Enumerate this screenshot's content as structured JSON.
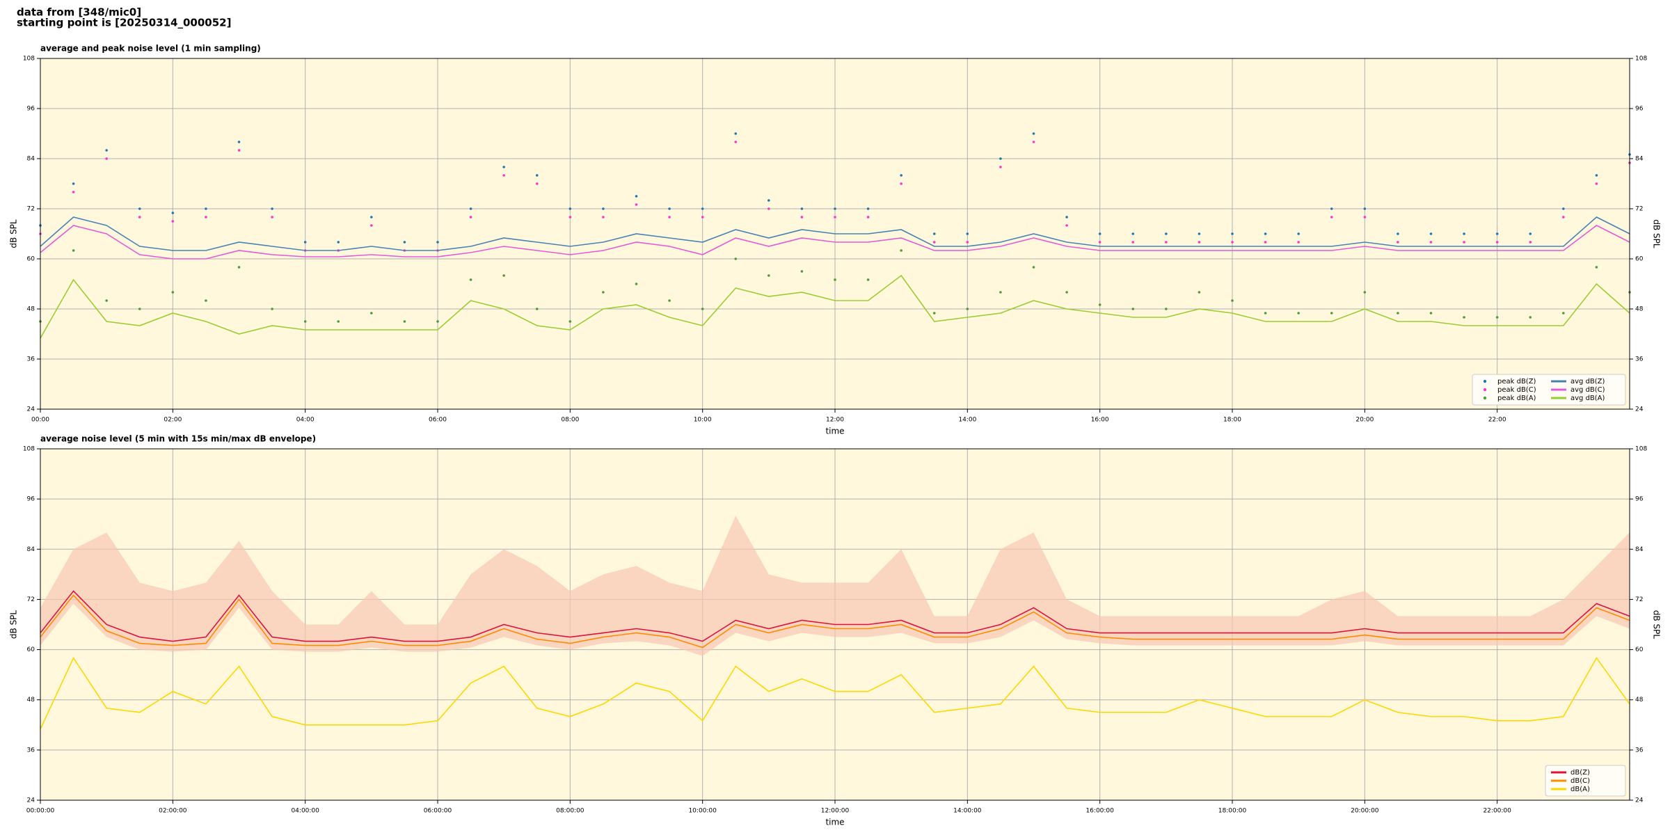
{
  "header": {
    "lines": [
      "data from [348/mic0]",
      "starting point is [20250314_000052]"
    ]
  },
  "chart_data": [
    {
      "type": "line",
      "title": "average and peak noise level (1 min sampling)",
      "x_label": "time",
      "y_label": "dB SPL",
      "mirror_y": true,
      "grid": true,
      "background": "#fff8dc",
      "legend": "lower right",
      "legend_columns": 2,
      "xlim": [
        0,
        24
      ],
      "ylim": [
        24,
        108
      ],
      "yticks": [
        24,
        36,
        48,
        60,
        72,
        84,
        96,
        108
      ],
      "xticks": [
        {
          "value": 0,
          "label": "00:00"
        },
        {
          "value": 2,
          "label": "02:00"
        },
        {
          "value": 4,
          "label": "04:00"
        },
        {
          "value": 6,
          "label": "06:00"
        },
        {
          "value": 8,
          "label": "08:00"
        },
        {
          "value": 10,
          "label": "10:00"
        },
        {
          "value": 12,
          "label": "12:00"
        },
        {
          "value": 14,
          "label": "14:00"
        },
        {
          "value": 16,
          "label": "16:00"
        },
        {
          "value": 18,
          "label": "18:00"
        },
        {
          "value": 20,
          "label": "20:00"
        },
        {
          "value": 22,
          "label": "22:00"
        }
      ],
      "x": [
        0,
        0.5,
        1,
        1.5,
        2,
        2.5,
        3,
        3.5,
        4,
        4.5,
        5,
        5.5,
        6,
        6.5,
        7,
        7.5,
        8,
        8.5,
        9,
        9.5,
        10,
        10.5,
        11,
        11.5,
        12,
        12.5,
        13,
        13.5,
        14,
        14.5,
        15,
        15.5,
        16,
        16.5,
        17,
        17.5,
        18,
        18.5,
        19,
        19.5,
        20,
        20.5,
        21,
        21.5,
        22,
        22.5,
        23,
        23.5,
        24
      ],
      "series": [
        {
          "name": "peak dB(Z)",
          "kind": "scatter",
          "color": "#1f77b4",
          "values": [
            68,
            78,
            86,
            72,
            71,
            72,
            88,
            72,
            64,
            64,
            70,
            64,
            64,
            72,
            82,
            80,
            72,
            72,
            75,
            72,
            72,
            90,
            74,
            72,
            72,
            72,
            80,
            66,
            66,
            84,
            90,
            70,
            66,
            66,
            66,
            66,
            66,
            66,
            66,
            72,
            72,
            66,
            66,
            66,
            66,
            66,
            72,
            80,
            85
          ]
        },
        {
          "name": "peak dB(C)",
          "kind": "scatter",
          "color": "#ff33cc",
          "values": [
            66,
            76,
            84,
            70,
            69,
            70,
            86,
            70,
            62,
            62,
            68,
            62,
            62,
            70,
            80,
            78,
            70,
            70,
            73,
            70,
            70,
            88,
            72,
            70,
            70,
            70,
            78,
            64,
            64,
            82,
            88,
            68,
            64,
            64,
            64,
            64,
            64,
            64,
            64,
            70,
            70,
            64,
            64,
            64,
            64,
            64,
            70,
            78,
            83
          ]
        },
        {
          "name": "peak dB(A)",
          "kind": "scatter",
          "color": "#4f9a3a",
          "values": [
            45,
            62,
            50,
            48,
            52,
            50,
            58,
            48,
            45,
            45,
            47,
            45,
            45,
            55,
            56,
            48,
            45,
            52,
            54,
            50,
            48,
            60,
            56,
            57,
            55,
            55,
            62,
            47,
            48,
            52,
            58,
            52,
            49,
            48,
            48,
            52,
            50,
            47,
            47,
            47,
            52,
            47,
            47,
            46,
            46,
            46,
            47,
            58,
            52
          ]
        },
        {
          "name": "avg dB(Z)",
          "kind": "line",
          "color": "#4682b4",
          "values": [
            63,
            70,
            68,
            63,
            62,
            62,
            64,
            63,
            62,
            62,
            63,
            62,
            62,
            63,
            65,
            64,
            63,
            64,
            66,
            65,
            64,
            67,
            65,
            67,
            66,
            66,
            67,
            63,
            63,
            64,
            66,
            64,
            63,
            63,
            63,
            63,
            63,
            63,
            63,
            63,
            64,
            63,
            63,
            63,
            63,
            63,
            63,
            70,
            66
          ]
        },
        {
          "name": "avg dB(C)",
          "kind": "line",
          "color": "#e55ad6",
          "values": [
            61.5,
            68,
            66,
            61,
            60,
            60,
            62,
            61,
            60.5,
            60.5,
            61,
            60.5,
            60.5,
            61.5,
            63,
            62,
            61,
            62,
            64,
            63,
            61,
            65,
            63,
            65,
            64,
            64,
            65,
            62,
            62,
            63,
            65,
            63,
            62,
            62,
            62,
            62,
            62,
            62,
            62,
            62,
            63,
            62,
            62,
            62,
            62,
            62,
            62,
            68,
            64
          ]
        },
        {
          "name": "avg dB(A)",
          "kind": "line",
          "color": "#9acd32",
          "values": [
            41,
            55,
            45,
            44,
            47,
            45,
            42,
            44,
            43,
            43,
            43,
            43,
            43,
            50,
            48,
            44,
            43,
            48,
            49,
            46,
            44,
            53,
            51,
            52,
            50,
            50,
            56,
            45,
            46,
            47,
            50,
            48,
            47,
            46,
            46,
            48,
            47,
            45,
            45,
            45,
            48,
            45,
            45,
            44,
            44,
            44,
            44,
            54,
            47
          ]
        }
      ]
    },
    {
      "type": "line",
      "title": "average noise level (5 min with 15s min/max dB envelope)",
      "x_label": "time",
      "y_label": "dB SPL",
      "mirror_y": true,
      "grid": true,
      "background": "#fff8dc",
      "legend": "lower right",
      "legend_columns": 1,
      "xlim": [
        0,
        24
      ],
      "ylim": [
        24,
        108
      ],
      "yticks": [
        24,
        36,
        48,
        60,
        72,
        84,
        96,
        108
      ],
      "xticks": [
        {
          "value": 0,
          "label": "00:00:00"
        },
        {
          "value": 2,
          "label": "02:00:00"
        },
        {
          "value": 4,
          "label": "04:00:00"
        },
        {
          "value": 6,
          "label": "06:00:00"
        },
        {
          "value": 8,
          "label": "08:00:00"
        },
        {
          "value": 10,
          "label": "10:00:00"
        },
        {
          "value": 12,
          "label": "12:00:00"
        },
        {
          "value": 14,
          "label": "14:00:00"
        },
        {
          "value": 16,
          "label": "16:00:00"
        },
        {
          "value": 18,
          "label": "18:00:00"
        },
        {
          "value": 20,
          "label": "20:00:00"
        },
        {
          "value": 22,
          "label": "22:00:00"
        }
      ],
      "x": [
        0,
        0.5,
        1,
        1.5,
        2,
        2.5,
        3,
        3.5,
        4,
        4.5,
        5,
        5.5,
        6,
        6.5,
        7,
        7.5,
        8,
        8.5,
        9,
        9.5,
        10,
        10.5,
        11,
        11.5,
        12,
        12.5,
        13,
        13.5,
        14,
        14.5,
        15,
        15.5,
        16,
        16.5,
        17,
        17.5,
        18,
        18.5,
        19,
        19.5,
        20,
        20.5,
        21,
        21.5,
        22,
        22.5,
        23,
        23.5,
        24
      ],
      "envelope": {
        "color": "#f8c8b4",
        "lower": [
          61,
          71,
          63,
          60,
          59.5,
          60,
          70,
          60,
          59.5,
          59.5,
          60.5,
          59.5,
          59.5,
          60.5,
          63,
          61,
          60,
          61.5,
          62,
          61,
          58.5,
          64,
          62,
          64,
          63,
          63,
          64,
          61.5,
          61.5,
          63,
          67,
          62.5,
          61.5,
          61,
          61,
          61,
          61,
          61,
          61,
          61,
          62,
          61,
          61,
          61,
          61,
          61,
          61,
          68,
          65
        ],
        "upper": [
          70,
          84,
          88,
          76,
          74,
          76,
          86,
          74,
          66,
          66,
          74,
          66,
          66,
          78,
          84,
          80,
          74,
          78,
          80,
          76,
          74,
          92,
          78,
          76,
          76,
          76,
          84,
          68,
          68,
          84,
          88,
          72,
          68,
          68,
          68,
          68,
          68,
          68,
          68,
          72,
          74,
          68,
          68,
          68,
          68,
          68,
          72,
          80,
          88
        ]
      },
      "series": [
        {
          "name": "dB(Z)",
          "kind": "line",
          "color": "#dc143c",
          "values": [
            64,
            74,
            66,
            63,
            62,
            63,
            73,
            63,
            62,
            62,
            63,
            62,
            62,
            63,
            66,
            64,
            63,
            64,
            65,
            64,
            62,
            67,
            65,
            67,
            66,
            66,
            67,
            64,
            64,
            66,
            70,
            65,
            64,
            64,
            64,
            64,
            64,
            64,
            64,
            64,
            65,
            64,
            64,
            64,
            64,
            64,
            64,
            71,
            68
          ]
        },
        {
          "name": "dB(C)",
          "kind": "line",
          "color": "#ff8c00",
          "values": [
            63,
            73,
            64.5,
            61.5,
            61,
            61.5,
            72,
            61.5,
            61,
            61,
            62,
            61,
            61,
            62,
            65,
            62.5,
            61.5,
            63,
            64,
            63,
            60.5,
            66,
            64,
            66,
            65,
            65,
            66,
            63,
            63,
            65,
            69,
            64,
            63,
            62.5,
            62.5,
            62.5,
            62.5,
            62.5,
            62.5,
            62.5,
            63.5,
            62.5,
            62.5,
            62.5,
            62.5,
            62.5,
            62.5,
            70,
            67
          ]
        },
        {
          "name": "dB(A)",
          "kind": "line",
          "color": "#ffd700",
          "values": [
            41,
            58,
            46,
            45,
            50,
            47,
            56,
            44,
            42,
            42,
            42,
            42,
            43,
            52,
            56,
            46,
            44,
            47,
            52,
            50,
            43,
            56,
            50,
            53,
            50,
            50,
            54,
            45,
            46,
            47,
            56,
            46,
            45,
            45,
            45,
            48,
            46,
            44,
            44,
            44,
            48,
            45,
            44,
            44,
            43,
            43,
            44,
            58,
            47
          ]
        }
      ]
    }
  ]
}
